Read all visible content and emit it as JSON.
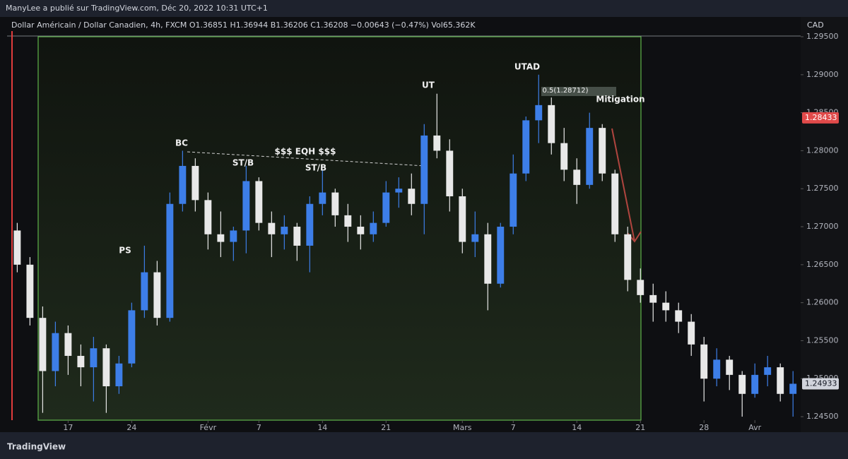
{
  "header": "ManyLee a publié sur TradingView.com, Déc 20, 2022 10:31 UTC+1",
  "footer": "TradingView",
  "chart_data": {
    "type": "candlestick",
    "legend": "Dollar Américain / Dollar Canadien, 4h, FXCM  O1.36851  H1.36944  B1.36206  C1.36208  −0.00643 (−0.47%)  Vol65.362K",
    "y_axis_label": "CAD",
    "up_color": "#3d7ee8",
    "down_color": "#e8e8e8",
    "x": [
      0.5,
      1.5,
      2.5,
      3.5,
      4.5,
      5.5,
      6.5,
      7.5,
      8.5,
      9.5,
      10.5,
      11.5,
      12.5,
      13.5,
      14.5,
      15.5,
      16.5,
      17.5,
      18.5,
      19.5,
      20.5,
      21.5,
      22.5,
      23.5,
      24.5,
      25.5,
      26.5,
      27.5,
      28.5,
      29.5,
      30.5,
      31.5,
      32.5,
      33.5,
      34.5,
      35.5,
      36.5,
      37.5,
      38.5,
      39.5,
      40.5,
      41.5,
      42.5,
      43.5,
      44.5,
      45.5,
      46.5,
      47.5,
      48.5,
      49.5,
      50.5,
      51.5,
      52.5,
      53.5,
      54.5,
      55.5,
      56.5,
      57.5,
      58.5,
      59.5,
      60.5,
      61.5
    ],
    "open": [
      1.2695,
      1.265,
      1.258,
      1.251,
      1.256,
      1.253,
      1.2515,
      1.254,
      1.249,
      1.252,
      1.259,
      1.264,
      1.258,
      1.273,
      1.278,
      1.2735,
      1.269,
      1.268,
      1.2695,
      1.276,
      1.2705,
      1.269,
      1.27,
      1.2675,
      1.273,
      1.2745,
      1.2715,
      1.27,
      1.269,
      1.2705,
      1.2745,
      1.275,
      1.273,
      1.282,
      1.28,
      1.274,
      1.268,
      1.269,
      1.2625,
      1.27,
      1.277,
      1.284,
      1.286,
      1.281,
      1.2775,
      1.2755,
      1.283,
      1.277,
      1.269,
      1.263,
      1.261,
      1.26,
      1.259,
      1.2575,
      1.2545,
      1.25,
      1.2525,
      1.2505,
      1.248,
      1.2505,
      1.2515,
      1.248
    ],
    "high": [
      1.2705,
      1.266,
      1.2595,
      1.2575,
      1.257,
      1.2545,
      1.2555,
      1.2545,
      1.253,
      1.26,
      1.2675,
      1.2655,
      1.2745,
      1.28,
      1.279,
      1.2745,
      1.272,
      1.27,
      1.278,
      1.2765,
      1.272,
      1.2715,
      1.2705,
      1.274,
      1.2775,
      1.275,
      1.273,
      1.2715,
      1.272,
      1.276,
      1.2765,
      1.277,
      1.2835,
      1.2875,
      1.2815,
      1.275,
      1.272,
      1.2705,
      1.2705,
      1.2795,
      1.2845,
      1.29,
      1.287,
      1.283,
      1.279,
      1.285,
      1.2835,
      1.2775,
      1.27,
      1.2645,
      1.2625,
      1.2615,
      1.26,
      1.2585,
      1.2555,
      1.254,
      1.253,
      1.251,
      1.252,
      1.253,
      1.252,
      1.251
    ],
    "low": [
      1.264,
      1.257,
      1.2455,
      1.249,
      1.2505,
      1.249,
      1.247,
      1.2455,
      1.248,
      1.2515,
      1.258,
      1.257,
      1.2575,
      1.272,
      1.272,
      1.267,
      1.266,
      1.2655,
      1.2665,
      1.2695,
      1.266,
      1.267,
      1.2655,
      1.264,
      1.2715,
      1.27,
      1.268,
      1.267,
      1.268,
      1.27,
      1.2725,
      1.2715,
      1.269,
      1.279,
      1.272,
      1.2665,
      1.266,
      1.259,
      1.262,
      1.269,
      1.276,
      1.281,
      1.2795,
      1.276,
      1.273,
      1.275,
      1.276,
      1.268,
      1.2615,
      1.26,
      1.2575,
      1.2575,
      1.256,
      1.253,
      1.247,
      1.249,
      1.2485,
      1.245,
      1.2475,
      1.249,
      1.247,
      1.245
    ],
    "close": [
      1.265,
      1.258,
      1.251,
      1.256,
      1.253,
      1.2515,
      1.254,
      1.249,
      1.252,
      1.259,
      1.264,
      1.258,
      1.273,
      1.278,
      1.2735,
      1.269,
      1.268,
      1.2695,
      1.276,
      1.2705,
      1.269,
      1.27,
      1.2675,
      1.273,
      1.2745,
      1.2715,
      1.27,
      1.269,
      1.2705,
      1.2745,
      1.275,
      1.273,
      1.282,
      1.28,
      1.274,
      1.268,
      1.269,
      1.2625,
      1.27,
      1.277,
      1.284,
      1.286,
      1.281,
      1.2775,
      1.2755,
      1.283,
      1.277,
      1.269,
      1.263,
      1.261,
      1.26,
      1.259,
      1.2575,
      1.2545,
      1.25,
      1.2525,
      1.2505,
      1.248,
      1.2505,
      1.2515,
      1.248,
      1.24933
    ],
    "xlim": [
      -0.3,
      62.1
    ],
    "xticks": [
      {
        "value": 4.5,
        "label": "17"
      },
      {
        "value": 9.5,
        "label": "24"
      },
      {
        "value": 15.5,
        "label": "Févr"
      },
      {
        "value": 19.5,
        "label": "7"
      },
      {
        "value": 24.5,
        "label": "14"
      },
      {
        "value": 29.5,
        "label": "21"
      },
      {
        "value": 35.5,
        "label": "Mars"
      },
      {
        "value": 39.5,
        "label": "7"
      },
      {
        "value": 44.5,
        "label": "14"
      },
      {
        "value": 49.5,
        "label": "21"
      },
      {
        "value": 54.5,
        "label": "28"
      },
      {
        "value": 58.5,
        "label": "Avr"
      }
    ],
    "ylim": [
      1.24454,
      1.29593
    ],
    "yticks": [
      {
        "value": 1.295,
        "label": "1.29500"
      },
      {
        "value": 1.29,
        "label": "1.29000"
      },
      {
        "value": 1.285,
        "label": "1.28500"
      },
      {
        "value": 1.28,
        "label": "1.28000"
      },
      {
        "value": 1.275,
        "label": "1.27500"
      },
      {
        "value": 1.27,
        "label": "1.27000"
      },
      {
        "value": 1.265,
        "label": "1.26500"
      },
      {
        "value": 1.26,
        "label": "1.26000"
      },
      {
        "value": 1.255,
        "label": "1.25500"
      },
      {
        "value": 1.25,
        "label": "1.25000"
      },
      {
        "value": 1.245,
        "label": "1.24500"
      }
    ],
    "alert_price": 1.28433,
    "last_price": 1.24933,
    "annotations": [
      "PS",
      "BC",
      "ST/B",
      "$$$  EQH  $$$",
      "ST/B",
      "UT",
      "UTAD",
      "0.5(1.28712)",
      "Mitigation"
    ]
  }
}
